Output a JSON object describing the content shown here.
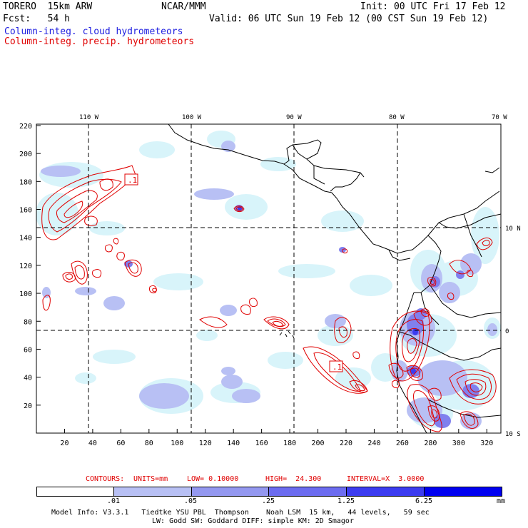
{
  "header": {
    "model": "TORERO  15km ARW",
    "center": "NCAR/MMM",
    "init": "Init: 00 UTC Fri 17 Feb 12",
    "fcst": "Fcst:   54 h",
    "valid": "Valid: 06 UTC Sun 19 Feb 12 (00 CST Sun 19 Feb 12)",
    "field1": "Column-integ. cloud hydrometeors",
    "field2": "Column-integ. precip. hydrometeors"
  },
  "map": {
    "lon_labels": [
      "110 W",
      "100 W",
      "90 W",
      "80 W",
      "70 W"
    ],
    "lat_labels": [
      "10 N",
      "0",
      "10 S"
    ],
    "x_ticks": [
      "20",
      "40",
      "60",
      "80",
      "100",
      "120",
      "140",
      "160",
      "180",
      "200",
      "220",
      "240",
      "260",
      "280",
      "300",
      "320"
    ],
    "y_ticks": [
      "220",
      "200",
      "180",
      "160",
      "140",
      "120",
      "100",
      "80",
      "60",
      "40",
      "20"
    ],
    "contour_labels": [
      ".1",
      ".1"
    ],
    "colors": {
      "contour": "#e00000",
      "coast": "#000000",
      "grid": "#000000"
    }
  },
  "contours_info": {
    "label": "CONTOURS:",
    "units": "UNITS=mm",
    "low": "LOW= 0.10000",
    "high": "HIGH=  24.300",
    "interval": "INTERVAL=X  3.0000"
  },
  "legend": {
    "levels": [
      ".01",
      ".05",
      ".25",
      "1.25",
      "6.25"
    ],
    "units": "mm",
    "colors": [
      "#ffffff",
      "#d8f4fa",
      "#b8c0f4",
      "#9498f0",
      "#6c6cf0",
      "#3c3cf0",
      "#0000f0"
    ]
  },
  "footer": {
    "line1": "Model Info: V3.3.1   Tiedtke YSU PBL  Thompson    Noah LSM  15 km,   44 levels,   59 sec",
    "line2": "LW: Godd SW: Goddard DIFF: simple KM: 2D Smagor"
  }
}
